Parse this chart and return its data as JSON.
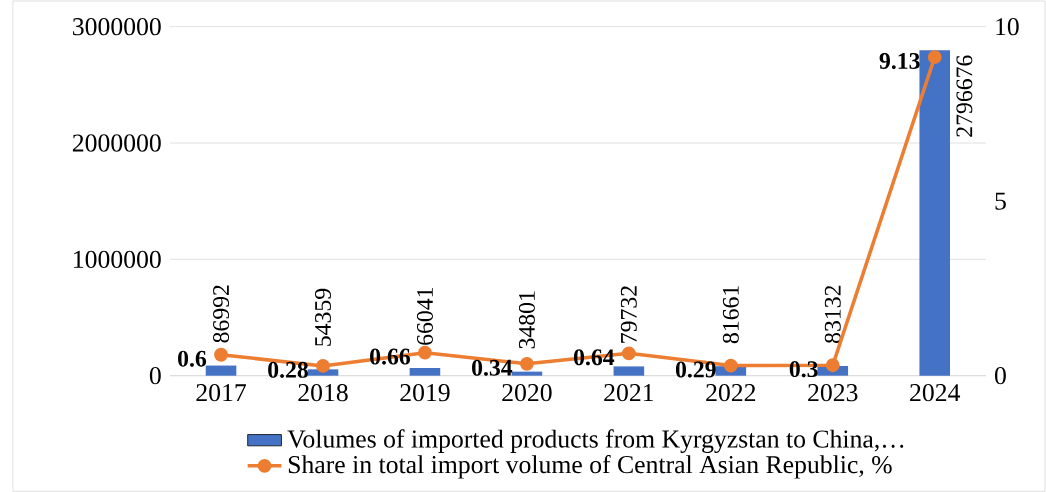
{
  "chart_data": {
    "type": "bar",
    "categories": [
      "2017",
      "2018",
      "2019",
      "2020",
      "2021",
      "2022",
      "2023",
      "2024"
    ],
    "series": [
      {
        "name": "Volumes of imported products from  Kyrgyzstan to China,…",
        "color": "#4472c4",
        "values": [
          86992,
          54359,
          66041,
          34801,
          79732,
          81661,
          83132,
          2796676
        ]
      },
      {
        "name": "Share in total import volume of Central Asian Republic, %",
        "type": "line",
        "axis": "y2",
        "color": "#ed7d31",
        "marker": "circle",
        "line_style": "solid",
        "values": [
          0.6,
          0.28,
          0.66,
          0.34,
          0.64,
          0.29,
          0.3,
          9.13
        ]
      }
    ],
    "ylim": [
      0,
      3000000
    ],
    "yticks": [
      0,
      1000000,
      2000000,
      3000000
    ],
    "y2lim": [
      0,
      10
    ],
    "y2ticks": [
      0,
      5,
      10
    ],
    "grid": "y",
    "legend": "bottom",
    "data_labels": true
  }
}
